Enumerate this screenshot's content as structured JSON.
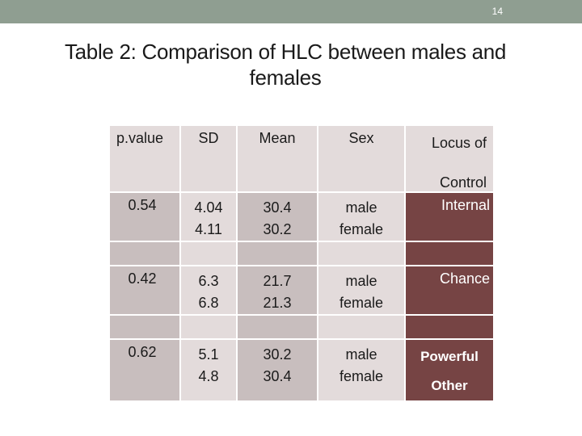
{
  "slide": {
    "number": "14"
  },
  "title": {
    "line1": "Table 2: Comparison of HLC between males and",
    "line2": "females"
  },
  "table": {
    "headers": [
      "p.value",
      "SD",
      "Mean",
      "Sex",
      "Locus of",
      "Control"
    ],
    "rows": [
      {
        "p": "0.54",
        "sd1": "4.04",
        "sd2": "4.11",
        "m1": "30.4",
        "m2": "30.2",
        "s1": "male",
        "s2": "female",
        "locus1": "Internal",
        "locus2": ""
      },
      {
        "p": "0.42",
        "sd1": "6.3",
        "sd2": "6.8",
        "m1": "21.7",
        "m2": "21.3",
        "s1": "male",
        "s2": "female",
        "locus1": "Chance",
        "locus2": ""
      },
      {
        "p": "0.62",
        "sd1": "5.1",
        "sd2": "4.8",
        "m1": "30.2",
        "m2": "30.4",
        "s1": "male",
        "s2": "female",
        "locus1": "Powerful",
        "locus2": "Other"
      }
    ]
  },
  "colors": {
    "topbar": "#8f9e91",
    "locus": "#764444",
    "header_cell": "#e3dbdb",
    "pvalue_cell": "#c8bebe"
  }
}
